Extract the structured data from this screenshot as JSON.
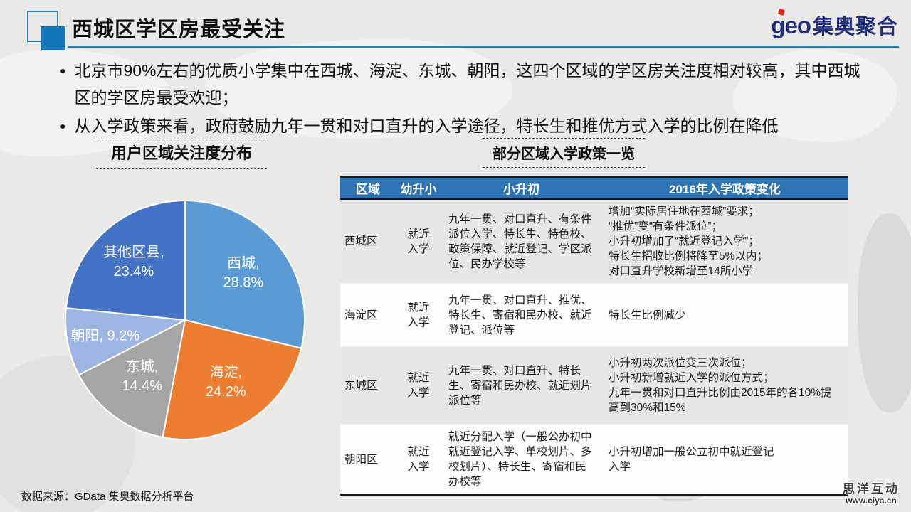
{
  "header": {
    "title": "西城区学区房最受关注",
    "logo_geo": "geo",
    "logo_cn": "集奥聚合"
  },
  "bullets": [
    "北京市90%左右的优质小学集中在西城、海淀、东城、朝阳，这四个区域的学区房关注度相对较高，其中西城区的学区房最受欢迎；",
    "从入学政策来看，政府鼓励九年一贯和对口直升的入学途径，特长生和推优方式入学的比例在降低"
  ],
  "chart_data": {
    "type": "pie",
    "title": "用户区域关注度分布",
    "categories": [
      "西城",
      "海淀",
      "东城",
      "朝阳",
      "其他区县"
    ],
    "values": [
      28.8,
      24.2,
      14.4,
      9.2,
      23.4
    ],
    "unit": "%",
    "colors": [
      "#5B9BD5",
      "#ED7D31",
      "#A5A5A5",
      "#9DB5E3",
      "#4472C4"
    ],
    "slice_labels": [
      [
        "西城,",
        "28.8%"
      ],
      [
        "海淀,",
        "24.2%"
      ],
      [
        "东城,",
        "14.4%"
      ],
      [
        "朝阳, 9.2%"
      ],
      [
        "其他区县,",
        "23.4%"
      ]
    ],
    "label_radius": [
      0.62,
      0.63,
      0.6,
      0.68,
      0.64
    ],
    "start_angle_deg": 0,
    "direction": "clockwise",
    "legend": "none"
  },
  "table": {
    "title": "部分区域入学政策一览",
    "columns": [
      "区域",
      "幼升小",
      "小升初",
      "2016年入学政策变化"
    ],
    "rows": [
      {
        "region": "西城区",
        "primary": "就近入学",
        "middle": "九年一贯、对口直升、有条件派位入学、特长生、特色校、政策保障、就近登记、学区派位、民办学校等",
        "changes": "增加“实际居住地在西城”要求；\n“推优”变“有条件派位”；\n小升初增加了“就近登记入学”；\n特长生招收比例将降至5%以内；\n对口直升学校新增至14所小学"
      },
      {
        "region": "海淀区",
        "primary": "就近入学",
        "middle": "九年一贯、对口直升、推优、特长生、寄宿和民办校、就近登记、派位等",
        "changes": "特长生比例减少"
      },
      {
        "region": "东城区",
        "primary": "就近入学",
        "middle": "九年一贯、对口直升、特长生、寄宿和民办校、就近划片派位等",
        "changes": "小升初两次派位变三次派位；\n小升初新增就近入学的派位方式；\n九年一贯和对口直升比例由2015年的各10%提高到30%和15%"
      },
      {
        "region": "朝阳区",
        "primary": "就近入学",
        "middle": "就近分配入学（一般公办初中就近登记入学、单校划片、多校划片）、特长生、寄宿和民办校等",
        "changes": "小升初增加一般公立初中就近登记\n入学"
      }
    ]
  },
  "footer": {
    "source": "数据来源：GData 集奥数据分析平台",
    "watermark_title": "思洋互动",
    "watermark_url": "www.ciya.cn"
  },
  "colors": {
    "accent_teal": "#2282A8",
    "title_square_fill": "#1474B8",
    "title_square_outline": "#2B86AD",
    "table_header_bg": "#2E74B5",
    "table_border_dark": "#17191D",
    "row_gray": "#E8E7E5",
    "row_white": "#FCFCFB",
    "logo_navy": "#21307D",
    "logo_red": "#D9261C"
  }
}
